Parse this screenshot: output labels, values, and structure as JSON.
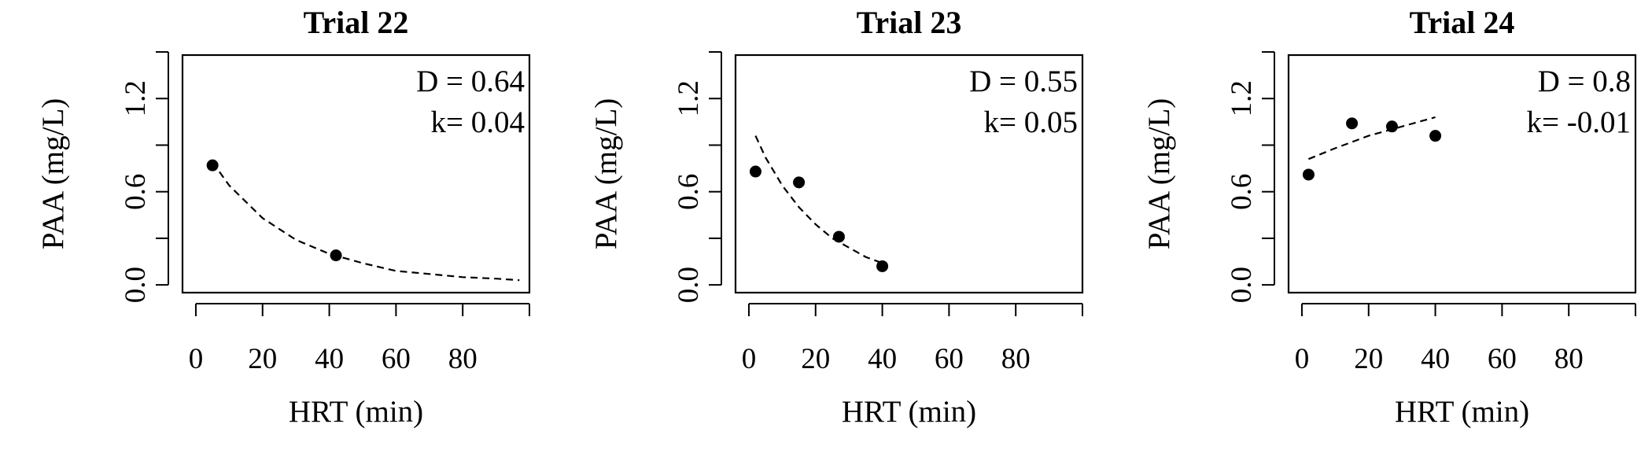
{
  "chart_data": [
    {
      "type": "scatter",
      "title": "Trial 22",
      "xlabel": "HRT (min)",
      "ylabel": "PAA (mg/L)",
      "xticks": [
        "0",
        "20",
        "40",
        "60",
        "80"
      ],
      "yticks": [
        "0.0",
        "0.6",
        "1.2"
      ],
      "xlim": [
        -4,
        100
      ],
      "ylim": [
        -0.05,
        1.48
      ],
      "points": [
        {
          "x": 5,
          "y": 0.77
        },
        {
          "x": 42,
          "y": 0.19
        }
      ],
      "fit": {
        "style": "dashed",
        "curve": "exponential",
        "points": [
          [
            5,
            0.79
          ],
          [
            10,
            0.64
          ],
          [
            20,
            0.43
          ],
          [
            30,
            0.29
          ],
          [
            40,
            0.2
          ],
          [
            50,
            0.14
          ],
          [
            60,
            0.09
          ],
          [
            70,
            0.07
          ],
          [
            80,
            0.05
          ],
          [
            90,
            0.04
          ],
          [
            97,
            0.03
          ]
        ]
      },
      "annotations": [
        "D = 0.64",
        "k= 0.04"
      ],
      "grid": false
    },
    {
      "type": "scatter",
      "title": "Trial 23",
      "xlabel": "HRT (min)",
      "ylabel": "PAA (mg/L)",
      "xticks": [
        "0",
        "20",
        "40",
        "60",
        "80"
      ],
      "yticks": [
        "0.0",
        "0.6",
        "1.2"
      ],
      "xlim": [
        -4,
        100
      ],
      "ylim": [
        -0.05,
        1.48
      ],
      "points": [
        {
          "x": 2,
          "y": 0.73
        },
        {
          "x": 15,
          "y": 0.66
        },
        {
          "x": 27,
          "y": 0.31
        },
        {
          "x": 40,
          "y": 0.12
        }
      ],
      "fit": {
        "style": "dashed",
        "curve": "exponential",
        "points": [
          [
            2,
            0.96
          ],
          [
            5,
            0.82
          ],
          [
            10,
            0.64
          ],
          [
            15,
            0.5
          ],
          [
            20,
            0.39
          ],
          [
            25,
            0.3
          ],
          [
            30,
            0.24
          ],
          [
            35,
            0.18
          ],
          [
            40,
            0.14
          ]
        ]
      },
      "annotations": [
        "D = 0.55",
        "k= 0.05"
      ],
      "grid": false
    },
    {
      "type": "scatter",
      "title": "Trial 24",
      "xlabel": "HRT (min)",
      "ylabel": "PAA (mg/L)",
      "xticks": [
        "0",
        "20",
        "40",
        "60",
        "80"
      ],
      "yticks": [
        "0.0",
        "0.6",
        "1.2"
      ],
      "xlim": [
        -4,
        100
      ],
      "ylim": [
        -0.05,
        1.48
      ],
      "points": [
        {
          "x": 2,
          "y": 0.71
        },
        {
          "x": 15,
          "y": 1.04
        },
        {
          "x": 27,
          "y": 1.02
        },
        {
          "x": 40,
          "y": 0.96
        }
      ],
      "fit": {
        "style": "dashed",
        "curve": "exponential",
        "points": [
          [
            2,
            0.81
          ],
          [
            10,
            0.88
          ],
          [
            20,
            0.96
          ],
          [
            30,
            1.02
          ],
          [
            40,
            1.08
          ]
        ]
      },
      "annotations": [
        "D = 0.8",
        "k= -0.01"
      ],
      "grid": false
    }
  ]
}
